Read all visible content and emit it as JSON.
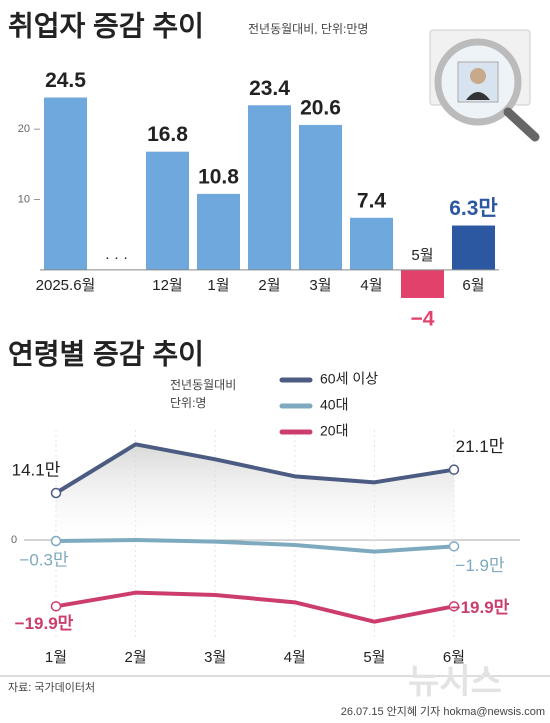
{
  "chart_data": [
    {
      "type": "bar",
      "title": "취업자 증감 추이",
      "subtitle": "전년동월대비, 단위:만명",
      "categories": [
        "2025.6월",
        "· · ·",
        "12월",
        "1월",
        "2월",
        "3월",
        "4월",
        "5월",
        "6월"
      ],
      "values": [
        24.5,
        null,
        16.8,
        10.8,
        23.4,
        20.6,
        7.4,
        -4,
        6.3
      ],
      "value_labels": [
        "24.5",
        null,
        "16.8",
        "10.8",
        "23.4",
        "20.6",
        "7.4",
        "−4",
        "6.3만"
      ],
      "colors": [
        "#6fa8dc",
        null,
        "#6fa8dc",
        "#6fa8dc",
        "#6fa8dc",
        "#6fa8dc",
        "#6fa8dc",
        "#e2416b",
        "#2b58a0"
      ],
      "ylim": [
        -5,
        25
      ],
      "yticks": [
        10,
        20
      ]
    },
    {
      "type": "line",
      "title": "연령별 증감 추이",
      "subtitle": [
        "전년동월대비",
        "단위:명"
      ],
      "categories": [
        "1월",
        "2월",
        "3월",
        "4월",
        "5월",
        "6월"
      ],
      "series": [
        {
          "name": "60세 이상",
          "color": "#4b5b82",
          "values": [
            14.1,
            28.7,
            24.2,
            19.1,
            17.3,
            21.1
          ],
          "value_labels": [
            "14.1만",
            null,
            null,
            null,
            null,
            "21.1만"
          ]
        },
        {
          "name": "40대",
          "color": "#7eaabf",
          "values": [
            -0.3,
            0,
            -0.5,
            -1.5,
            -3.5,
            -1.9
          ],
          "value_labels": [
            "−0.3만",
            null,
            null,
            null,
            null,
            "−1.9만"
          ]
        },
        {
          "name": "20대",
          "color": "#cc3d6c",
          "values": [
            -19.9,
            -15.8,
            -16.5,
            -18.7,
            -24.5,
            -19.9
          ],
          "value_labels": [
            "−19.9만",
            null,
            null,
            null,
            null,
            "−19.9만"
          ]
        }
      ],
      "ylim": [
        -30,
        30
      ],
      "yticks": [
        0
      ]
    }
  ],
  "footer": {
    "source": "자료: 국가데이터처",
    "credit": "26.07.15 안지혜 기자 hokma@newsis.com",
    "logo": "뉴시스"
  }
}
